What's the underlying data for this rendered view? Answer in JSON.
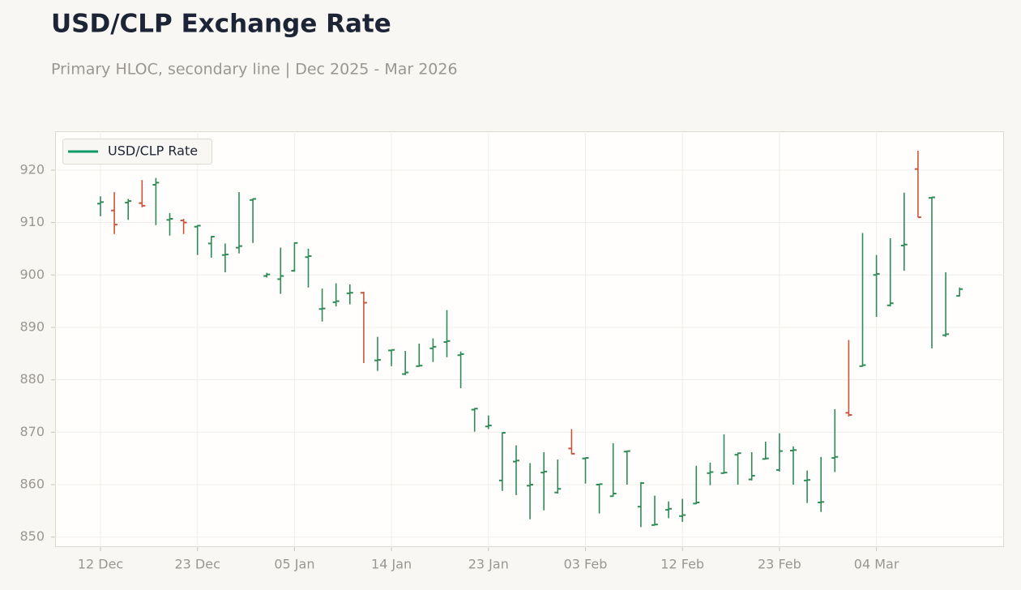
{
  "chart_data": {
    "type": "ohlc",
    "title": "USD/CLP Exchange Rate",
    "subtitle": "Primary HLOC, secondary line | Dec 2025 - Mar 2026",
    "categories": [
      "12 Dec",
      null,
      null,
      null,
      null,
      null,
      null,
      "23 Dec",
      null,
      null,
      null,
      null,
      null,
      null,
      "05 Jan",
      null,
      null,
      null,
      null,
      null,
      null,
      "14 Jan",
      null,
      null,
      null,
      null,
      null,
      null,
      "23 Jan",
      null,
      null,
      null,
      null,
      null,
      null,
      "03 Feb",
      null,
      null,
      null,
      null,
      null,
      null,
      "12 Feb",
      null,
      null,
      null,
      null,
      null,
      null,
      "23 Feb",
      null,
      null,
      null,
      null,
      null,
      null,
      "04 Mar",
      null,
      null,
      null,
      null,
      null,
      null
    ],
    "series": [
      {
        "name": "USD/CLP Rate",
        "color": "#0b9a6a",
        "up_color": "#2e8b57",
        "down_color": "#c8553d",
        "open": [
          913.6,
          912.3,
          913.8,
          913.7,
          917.2,
          910.5,
          910.4,
          909.2,
          906.0,
          903.8,
          905.2,
          914.3,
          899.8,
          899.2,
          900.8,
          903.4,
          893.5,
          894.8,
          896.5,
          896.6,
          883.7,
          885.6,
          881.1,
          882.6,
          886.0,
          887.2,
          884.7,
          874.3,
          871.1,
          860.8,
          864.4,
          859.8,
          862.3,
          858.5,
          866.9,
          865.0,
          860.0,
          857.8,
          866.3,
          855.8,
          852.3,
          855.2,
          854.0,
          856.4,
          862.2,
          862.2,
          865.7,
          861.0,
          864.9,
          862.8,
          866.5,
          860.8,
          856.6,
          865.1,
          873.7,
          882.6,
          900.0,
          894.2,
          905.6,
          920.2,
          914.7,
          888.5,
          896.0
        ],
        "high": [
          915.0,
          915.8,
          914.5,
          918.1,
          918.5,
          911.8,
          910.7,
          909.5,
          907.4,
          906.0,
          915.8,
          914.6,
          900.4,
          905.2,
          906.2,
          905.0,
          897.4,
          898.4,
          898.2,
          896.8,
          888.2,
          885.7,
          885.5,
          886.9,
          887.9,
          893.3,
          885.4,
          874.6,
          873.2,
          870.0,
          867.5,
          864.1,
          866.2,
          864.8,
          870.6,
          865.2,
          860.2,
          867.9,
          866.5,
          860.5,
          857.9,
          856.8,
          857.3,
          863.6,
          864.2,
          869.6,
          866.1,
          866.2,
          868.2,
          869.8,
          867.3,
          862.7,
          865.3,
          874.4,
          887.6,
          908.0,
          903.8,
          907.0,
          915.7,
          923.7,
          914.9,
          900.5,
          897.6
        ],
        "low": [
          911.2,
          907.8,
          910.5,
          912.9,
          909.5,
          907.5,
          907.8,
          903.8,
          903.3,
          900.5,
          904.1,
          906.1,
          899.5,
          896.4,
          900.6,
          897.6,
          891.1,
          894.0,
          894.4,
          883.2,
          881.7,
          882.6,
          880.9,
          882.5,
          883.4,
          884.3,
          878.4,
          870.1,
          870.6,
          858.8,
          858.0,
          853.4,
          855.1,
          858.3,
          865.8,
          860.2,
          854.5,
          857.7,
          860.0,
          851.9,
          852.2,
          853.6,
          852.9,
          856.3,
          859.9,
          862.1,
          860.0,
          860.8,
          864.8,
          862.5,
          860.0,
          856.5,
          854.8,
          862.4,
          873.0,
          882.5,
          892.0,
          894.0,
          900.8,
          911.0,
          886.0,
          888.2,
          895.9
        ],
        "close": [
          913.9,
          909.6,
          914.1,
          913.2,
          917.6,
          910.7,
          910.0,
          909.4,
          907.3,
          903.9,
          905.5,
          914.5,
          900.1,
          899.8,
          906.1,
          903.6,
          893.6,
          895.0,
          896.6,
          894.7,
          883.8,
          885.7,
          881.4,
          882.7,
          886.3,
          887.4,
          884.9,
          874.5,
          871.3,
          869.9,
          864.6,
          860.0,
          862.5,
          859.2,
          865.9,
          865.1,
          860.1,
          858.3,
          866.4,
          860.3,
          852.4,
          855.4,
          854.2,
          856.6,
          862.4,
          862.3,
          866.0,
          861.7,
          865.0,
          866.4,
          866.6,
          860.9,
          856.7,
          865.3,
          873.3,
          882.8,
          900.2,
          894.6,
          905.8,
          911.0,
          914.8,
          888.7,
          897.3
        ]
      }
    ],
    "ylim": [
      848.1,
      927.4
    ],
    "yticks": [
      850,
      860,
      870,
      880,
      890,
      900,
      910,
      920
    ],
    "grid": true,
    "legend": "upper left"
  }
}
